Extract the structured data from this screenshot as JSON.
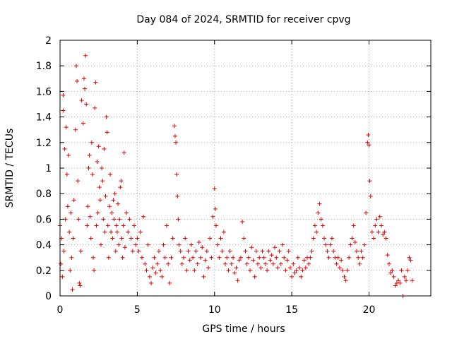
{
  "chart_data": {
    "type": "scatter",
    "title": "Day 084 of 2024, SRMTID for receiver cpvg",
    "xlabel": "GPS time / hours",
    "ylabel": "SRMTID / TECUs",
    "xlim": [
      0,
      24
    ],
    "ylim": [
      0,
      2
    ],
    "grid": true,
    "marker": "+",
    "color": "#e00000",
    "x_ticks": [
      {
        "value": 0,
        "label": "0"
      },
      {
        "value": 5,
        "label": "5"
      },
      {
        "value": 10,
        "label": "10"
      },
      {
        "value": 15,
        "label": "15"
      },
      {
        "value": 20,
        "label": "20"
      }
    ],
    "y_ticks": [
      {
        "value": 0,
        "label": "0"
      },
      {
        "value": 0.2,
        "label": "0.2"
      },
      {
        "value": 0.4,
        "label": "0.4"
      },
      {
        "value": 0.6,
        "label": "0.6"
      },
      {
        "value": 0.8,
        "label": "0.8"
      },
      {
        "value": 1,
        "label": "1"
      },
      {
        "value": 1.2,
        "label": "1.2"
      },
      {
        "value": 1.4,
        "label": "1.4"
      },
      {
        "value": 1.6,
        "label": "1.6"
      },
      {
        "value": 1.8,
        "label": "1.8"
      },
      {
        "value": 2,
        "label": "2"
      }
    ],
    "series": [
      {
        "name": "SRMTID",
        "points": [
          [
            0.0,
            0.55
          ],
          [
            0.05,
            0.25
          ],
          [
            0.1,
            0.45
          ],
          [
            0.15,
            0.15
          ],
          [
            0.2,
            1.57
          ],
          [
            0.2,
            1.45
          ],
          [
            0.25,
            0.35
          ],
          [
            0.3,
            1.15
          ],
          [
            0.35,
            0.6
          ],
          [
            0.4,
            1.32
          ],
          [
            0.45,
            0.95
          ],
          [
            0.5,
            0.7
          ],
          [
            0.55,
            1.1
          ],
          [
            0.6,
            0.5
          ],
          [
            0.65,
            0.2
          ],
          [
            0.7,
            0.65
          ],
          [
            0.75,
            0.3
          ],
          [
            0.8,
            0.05
          ],
          [
            0.85,
            0.45
          ],
          [
            0.9,
            0.75
          ],
          [
            1.0,
            1.3
          ],
          [
            1.05,
            1.8
          ],
          [
            1.1,
            1.68
          ],
          [
            1.15,
            0.9
          ],
          [
            1.2,
            0.6
          ],
          [
            1.25,
            0.1
          ],
          [
            1.3,
            0.08
          ],
          [
            1.35,
            0.35
          ],
          [
            1.4,
            1.53
          ],
          [
            1.5,
            1.35
          ],
          [
            1.55,
            1.7
          ],
          [
            1.6,
            1.62
          ],
          [
            1.65,
            1.88
          ],
          [
            1.7,
            1.5
          ],
          [
            1.75,
            0.55
          ],
          [
            1.8,
            0.7
          ],
          [
            1.85,
            1.0
          ],
          [
            1.9,
            1.1
          ],
          [
            1.95,
            0.62
          ],
          [
            2.0,
            0.45
          ],
          [
            2.05,
            1.2
          ],
          [
            2.1,
            0.95
          ],
          [
            2.15,
            0.3
          ],
          [
            2.2,
            0.2
          ],
          [
            2.25,
            1.47
          ],
          [
            2.3,
            1.67
          ],
          [
            2.35,
            0.55
          ],
          [
            2.4,
            1.05
          ],
          [
            2.45,
            0.65
          ],
          [
            2.5,
            1.17
          ],
          [
            2.55,
            0.85
          ],
          [
            2.6,
            0.75
          ],
          [
            2.65,
            0.4
          ],
          [
            2.7,
            1.0
          ],
          [
            2.75,
            0.9
          ],
          [
            2.8,
            0.6
          ],
          [
            2.85,
            1.15
          ],
          [
            2.9,
            0.5
          ],
          [
            2.95,
            0.78
          ],
          [
            3.0,
            1.4
          ],
          [
            3.05,
            1.28
          ],
          [
            3.1,
            0.55
          ],
          [
            3.15,
            0.3
          ],
          [
            3.2,
            0.7
          ],
          [
            3.25,
            0.95
          ],
          [
            3.3,
            0.5
          ],
          [
            3.35,
            0.65
          ],
          [
            3.4,
            0.45
          ],
          [
            3.45,
            0.75
          ],
          [
            3.5,
            0.6
          ],
          [
            3.55,
            0.8
          ],
          [
            3.6,
            0.35
          ],
          [
            3.65,
            0.55
          ],
          [
            3.7,
            0.5
          ],
          [
            3.75,
            0.72
          ],
          [
            3.8,
            0.4
          ],
          [
            3.85,
            0.6
          ],
          [
            3.9,
            0.85
          ],
          [
            3.95,
            0.9
          ],
          [
            4.0,
            0.45
          ],
          [
            4.05,
            0.3
          ],
          [
            4.1,
            0.55
          ],
          [
            4.15,
            1.12
          ],
          [
            4.2,
            0.38
          ],
          [
            4.3,
            0.65
          ],
          [
            4.4,
            0.5
          ],
          [
            4.5,
            0.6
          ],
          [
            4.6,
            0.45
          ],
          [
            4.7,
            0.35
          ],
          [
            4.8,
            0.55
          ],
          [
            4.9,
            0.4
          ],
          [
            5.0,
            0.45
          ],
          [
            5.1,
            0.35
          ],
          [
            5.2,
            0.5
          ],
          [
            5.3,
            0.3
          ],
          [
            5.4,
            0.62
          ],
          [
            5.5,
            0.25
          ],
          [
            5.6,
            0.2
          ],
          [
            5.7,
            0.4
          ],
          [
            5.8,
            0.15
          ],
          [
            5.9,
            0.1
          ],
          [
            6.0,
            0.22
          ],
          [
            6.1,
            0.3
          ],
          [
            6.2,
            0.18
          ],
          [
            6.3,
            0.25
          ],
          [
            6.4,
            0.35
          ],
          [
            6.5,
            0.2
          ],
          [
            6.6,
            0.15
          ],
          [
            6.7,
            0.4
          ],
          [
            6.8,
            0.3
          ],
          [
            6.9,
            0.55
          ],
          [
            7.0,
            0.25
          ],
          [
            7.1,
            0.1
          ],
          [
            7.2,
            0.3
          ],
          [
            7.3,
            0.45
          ],
          [
            7.4,
            1.33
          ],
          [
            7.45,
            1.25
          ],
          [
            7.5,
            1.2
          ],
          [
            7.55,
            0.95
          ],
          [
            7.6,
            0.78
          ],
          [
            7.65,
            0.6
          ],
          [
            7.7,
            0.4
          ],
          [
            7.8,
            0.35
          ],
          [
            7.9,
            0.25
          ],
          [
            8.0,
            0.3
          ],
          [
            8.1,
            0.45
          ],
          [
            8.2,
            0.2
          ],
          [
            8.3,
            0.35
          ],
          [
            8.4,
            0.28
          ],
          [
            8.5,
            0.4
          ],
          [
            8.6,
            0.3
          ],
          [
            8.7,
            0.2
          ],
          [
            8.8,
            0.35
          ],
          [
            8.9,
            0.25
          ],
          [
            9.0,
            0.42
          ],
          [
            9.1,
            0.3
          ],
          [
            9.2,
            0.38
          ],
          [
            9.3,
            0.15
          ],
          [
            9.4,
            0.28
          ],
          [
            9.5,
            0.35
          ],
          [
            9.6,
            0.22
          ],
          [
            9.7,
            0.45
          ],
          [
            9.8,
            0.3
          ],
          [
            9.9,
            0.62
          ],
          [
            10.0,
            0.84
          ],
          [
            10.05,
            0.68
          ],
          [
            10.1,
            0.55
          ],
          [
            10.2,
            0.4
          ],
          [
            10.3,
            0.3
          ],
          [
            10.4,
            0.45
          ],
          [
            10.5,
            0.35
          ],
          [
            10.6,
            0.5
          ],
          [
            10.7,
            0.25
          ],
          [
            10.8,
            0.3
          ],
          [
            10.9,
            0.2
          ],
          [
            11.0,
            0.35
          ],
          [
            11.1,
            0.25
          ],
          [
            11.2,
            0.3
          ],
          [
            11.3,
            0.18
          ],
          [
            11.4,
            0.22
          ],
          [
            11.5,
            0.12
          ],
          [
            11.6,
            0.28
          ],
          [
            11.7,
            0.3
          ],
          [
            11.8,
            0.58
          ],
          [
            11.9,
            0.45
          ],
          [
            12.0,
            0.35
          ],
          [
            12.1,
            0.25
          ],
          [
            12.2,
            0.3
          ],
          [
            12.3,
            0.2
          ],
          [
            12.4,
            0.38
          ],
          [
            12.5,
            0.28
          ],
          [
            12.6,
            0.15
          ],
          [
            12.7,
            0.35
          ],
          [
            12.8,
            0.25
          ],
          [
            12.9,
            0.3
          ],
          [
            13.0,
            0.22
          ],
          [
            13.1,
            0.35
          ],
          [
            13.2,
            0.3
          ],
          [
            13.3,
            0.25
          ],
          [
            13.4,
            0.2
          ],
          [
            13.5,
            0.35
          ],
          [
            13.6,
            0.28
          ],
          [
            13.7,
            0.32
          ],
          [
            13.8,
            0.25
          ],
          [
            13.9,
            0.38
          ],
          [
            14.0,
            0.3
          ],
          [
            14.1,
            0.22
          ],
          [
            14.2,
            0.35
          ],
          [
            14.3,
            0.25
          ],
          [
            14.4,
            0.4
          ],
          [
            14.5,
            0.3
          ],
          [
            14.6,
            0.2
          ],
          [
            14.7,
            0.28
          ],
          [
            14.8,
            0.35
          ],
          [
            14.9,
            0.22
          ],
          [
            15.0,
            0.15
          ],
          [
            15.1,
            0.25
          ],
          [
            15.2,
            0.18
          ],
          [
            15.3,
            0.2
          ],
          [
            15.4,
            0.3
          ],
          [
            15.5,
            0.22
          ],
          [
            15.6,
            0.15
          ],
          [
            15.7,
            0.2
          ],
          [
            15.8,
            0.28
          ],
          [
            15.9,
            0.22
          ],
          [
            16.0,
            0.3
          ],
          [
            16.1,
            0.25
          ],
          [
            16.2,
            0.3
          ],
          [
            16.3,
            0.35
          ],
          [
            16.4,
            0.45
          ],
          [
            16.5,
            0.55
          ],
          [
            16.6,
            0.5
          ],
          [
            16.7,
            0.65
          ],
          [
            16.8,
            0.72
          ],
          [
            16.9,
            0.6
          ],
          [
            17.0,
            0.55
          ],
          [
            17.1,
            0.45
          ],
          [
            17.2,
            0.4
          ],
          [
            17.3,
            0.35
          ],
          [
            17.4,
            0.3
          ],
          [
            17.5,
            0.4
          ],
          [
            17.6,
            0.45
          ],
          [
            17.7,
            0.35
          ],
          [
            17.8,
            0.3
          ],
          [
            17.9,
            0.25
          ],
          [
            18.0,
            0.3
          ],
          [
            18.1,
            0.22
          ],
          [
            18.2,
            0.28
          ],
          [
            18.3,
            0.2
          ],
          [
            18.4,
            0.15
          ],
          [
            18.5,
            0.12
          ],
          [
            18.6,
            0.2
          ],
          [
            18.7,
            0.3
          ],
          [
            18.8,
            0.4
          ],
          [
            18.9,
            0.45
          ],
          [
            19.0,
            0.55
          ],
          [
            19.1,
            0.42
          ],
          [
            19.2,
            0.35
          ],
          [
            19.3,
            0.3
          ],
          [
            19.4,
            0.25
          ],
          [
            19.5,
            0.35
          ],
          [
            19.6,
            0.3
          ],
          [
            19.7,
            0.4
          ],
          [
            19.8,
            0.65
          ],
          [
            19.9,
            1.2
          ],
          [
            19.95,
            1.26
          ],
          [
            20.0,
            1.18
          ],
          [
            20.05,
            0.9
          ],
          [
            20.1,
            0.78
          ],
          [
            20.2,
            0.5
          ],
          [
            20.3,
            0.45
          ],
          [
            20.4,
            0.55
          ],
          [
            20.5,
            0.6
          ],
          [
            20.6,
            0.5
          ],
          [
            20.7,
            0.62
          ],
          [
            20.8,
            0.55
          ],
          [
            20.9,
            0.48
          ],
          [
            21.0,
            0.5
          ],
          [
            21.1,
            0.45
          ],
          [
            21.2,
            0.32
          ],
          [
            21.3,
            0.25
          ],
          [
            21.4,
            0.18
          ],
          [
            21.5,
            0.2
          ],
          [
            21.6,
            0.15
          ],
          [
            21.7,
            0.08
          ],
          [
            21.8,
            0.1
          ],
          [
            21.9,
            0.12
          ],
          [
            22.0,
            0.1
          ],
          [
            22.1,
            0.2
          ],
          [
            22.2,
            0.0
          ],
          [
            22.3,
            0.15
          ],
          [
            22.4,
            0.12
          ],
          [
            22.5,
            0.2
          ],
          [
            22.6,
            0.3
          ],
          [
            22.7,
            0.28
          ],
          [
            22.8,
            0.12
          ]
        ]
      }
    ]
  }
}
